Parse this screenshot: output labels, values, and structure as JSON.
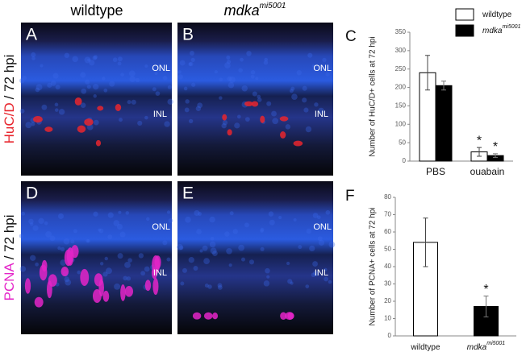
{
  "figure": {
    "columns": [
      {
        "text": "wildtype"
      },
      {
        "text": "mdka",
        "sup": "mi5001"
      }
    ],
    "rows": [
      {
        "marker": "HuC/D",
        "color": "#e8262e",
        "time": "/ 72 hpi"
      },
      {
        "marker": "PCNA",
        "color": "#e424c8",
        "time": "/ 72 hpi"
      }
    ],
    "panels": [
      {
        "letter": "A",
        "onl": "ONL",
        "inl": "INL"
      },
      {
        "letter": "B",
        "onl": "ONL",
        "inl": "INL"
      },
      {
        "letter": "D",
        "onl": "ONL",
        "inl": "INL"
      },
      {
        "letter": "E",
        "onl": "ONL",
        "inl": "INL"
      }
    ]
  },
  "chart_data": [
    {
      "type": "bar",
      "letter": "C",
      "y_label": "Number of HuC/D+ cells at 72 hpi",
      "categories": [
        "PBS",
        "ouabain"
      ],
      "series": [
        {
          "name": "wildtype",
          "color": "#ffffff",
          "values": [
            240,
            25
          ],
          "errors": [
            47,
            12
          ],
          "significance": [
            null,
            "*"
          ]
        },
        {
          "name": "mdka",
          "name_sup": "mi5001",
          "color": "#000000",
          "values": [
            205,
            15
          ],
          "errors": [
            12,
            5
          ],
          "significance": [
            null,
            "*"
          ]
        }
      ],
      "ylim": [
        0,
        350
      ],
      "yticks": [
        0,
        50,
        100,
        150,
        200,
        250,
        300,
        350
      ]
    },
    {
      "type": "bar",
      "letter": "F",
      "y_label": "Number of PCNA+ cells at 72 hpi",
      "categories": [
        "wildtype",
        "mdka"
      ],
      "category_sups": [
        null,
        "mi5001"
      ],
      "series": [
        {
          "colors": [
            "#ffffff",
            "#000000"
          ],
          "values": [
            54,
            17
          ],
          "errors": [
            14,
            6
          ],
          "significance": [
            null,
            "*"
          ]
        }
      ],
      "ylim": [
        0,
        80
      ],
      "yticks": [
        0,
        10,
        20,
        30,
        40,
        50,
        60,
        70,
        80
      ]
    }
  ]
}
